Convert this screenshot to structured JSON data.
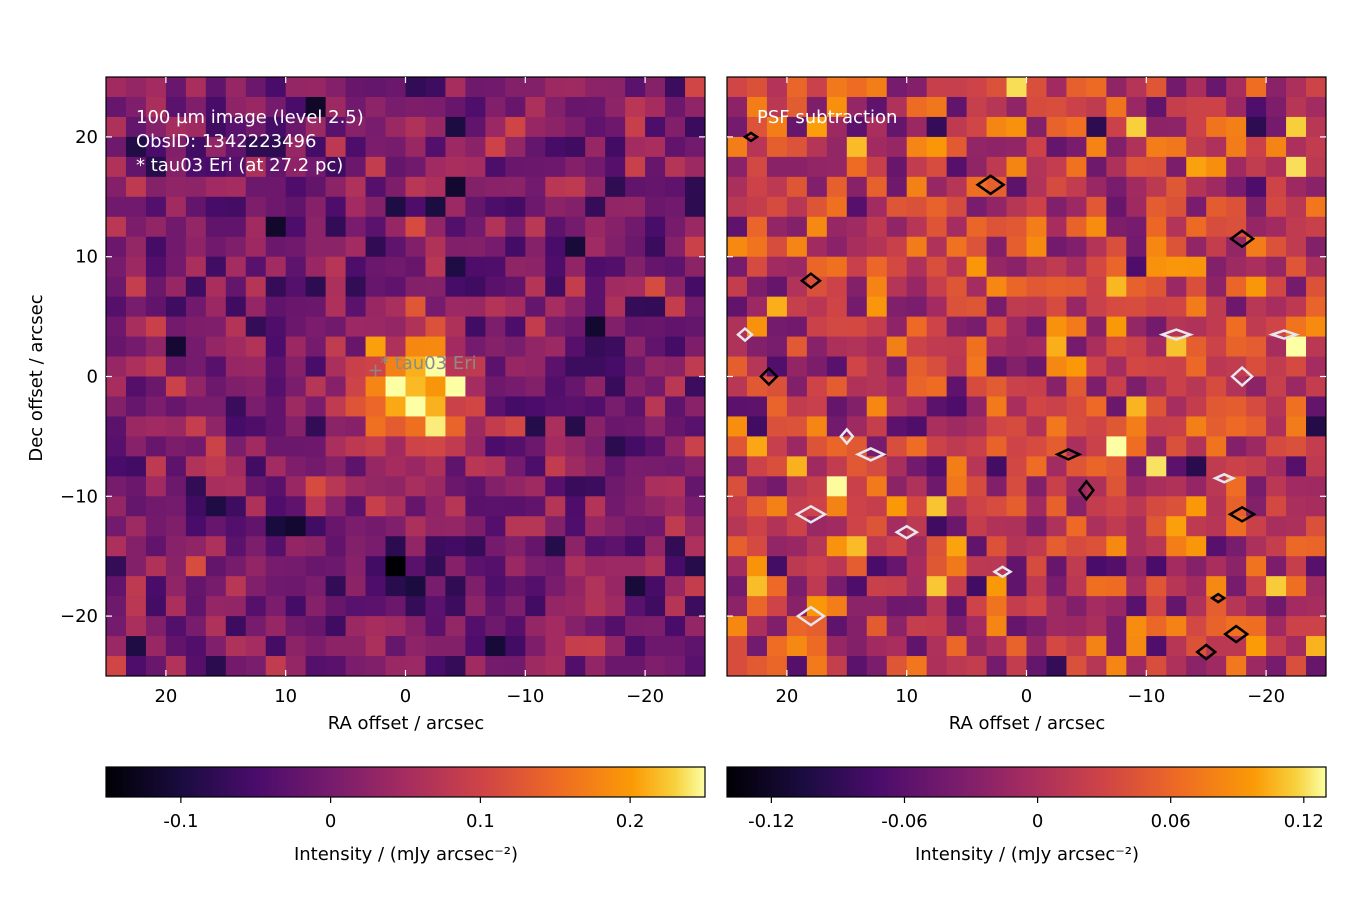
{
  "figure": {
    "ylabel": "Dec offset / arcsec",
    "axis_ticks": [
      20,
      10,
      0,
      -10,
      -20
    ],
    "axis_tick_labels": [
      "20",
      "10",
      "0",
      "−10",
      "−20"
    ]
  },
  "left_panel": {
    "annotation_lines": [
      "100 µm image (level 2.5)",
      "ObsID: 1342223496",
      "* tau03 Eri (at 27.2 pc)"
    ],
    "star_label": "* tau03 Eri",
    "xlabel": "RA offset / arcsec",
    "colorbar": {
      "label": "Intensity / (mJy arcsec⁻²)",
      "tick_labels": [
        "-0.1",
        "0",
        "0.1",
        "0.2"
      ]
    }
  },
  "right_panel": {
    "title": "PSF subtraction",
    "xlabel": "RA offset / arcsec",
    "colorbar": {
      "label": "Intensity / (mJy arcsec⁻²)",
      "tick_labels": [
        "-0.12",
        "-0.06",
        "0",
        "0.06",
        "0.12"
      ]
    }
  },
  "chart_data": [
    {
      "type": "heatmap",
      "title": "100 µm image (level 2.5)",
      "xlabel": "RA offset / arcsec",
      "ylabel": "Dec offset / arcsec",
      "xlim": [
        25,
        -25
      ],
      "ylim": [
        -25,
        25
      ],
      "colormap": "inferno",
      "color_range": [
        -0.15,
        0.25
      ],
      "colorbar_ticks": [
        -0.1,
        0,
        0.1,
        0.2
      ],
      "colorbar_label": "Intensity / (mJy arcsec⁻²)",
      "star": {
        "name": "* tau03 Eri",
        "ra_offset": 2.5,
        "dec_offset": 0.5
      },
      "features": [
        {
          "kind": "peak",
          "ra_offset": -1.0,
          "dec_offset": -1.0,
          "value": 0.24
        },
        {
          "kind": "trough",
          "ra_offset": 0.0,
          "dec_offset": -16.0,
          "value": -0.14
        },
        {
          "kind": "trough",
          "ra_offset": 10.0,
          "dec_offset": -12.5,
          "value": -0.14
        },
        {
          "kind": "trough",
          "ra_offset": 18.0,
          "dec_offset": -11.0,
          "value": -0.14
        }
      ]
    },
    {
      "type": "heatmap",
      "title": "PSF subtraction",
      "xlabel": "RA offset / arcsec",
      "xlim": [
        25,
        -25
      ],
      "ylim": [
        -25,
        25
      ],
      "colormap": "inferno",
      "color_range": [
        -0.14,
        0.13
      ],
      "colorbar_ticks": [
        -0.12,
        -0.06,
        0,
        0.06,
        0.12
      ],
      "colorbar_label": "Intensity / (mJy arcsec⁻²)",
      "contours": [
        {
          "color": "black",
          "ra_offset": 23.0,
          "dec_offset": 20.0
        },
        {
          "color": "black",
          "ra_offset": 3.0,
          "dec_offset": 16.0
        },
        {
          "color": "black",
          "ra_offset": -18.0,
          "dec_offset": 11.5
        },
        {
          "color": "black",
          "ra_offset": 18.0,
          "dec_offset": 8.0
        },
        {
          "color": "white",
          "ra_offset": 23.5,
          "dec_offset": 3.5
        },
        {
          "color": "white",
          "ra_offset": -12.5,
          "dec_offset": 3.5
        },
        {
          "color": "white",
          "ra_offset": -21.5,
          "dec_offset": 3.5
        },
        {
          "color": "white",
          "ra_offset": -18.0,
          "dec_offset": 0.0
        },
        {
          "color": "black",
          "ra_offset": 21.5,
          "dec_offset": 0.0
        },
        {
          "color": "white",
          "ra_offset": 15.0,
          "dec_offset": -5.0
        },
        {
          "color": "white",
          "ra_offset": 13.0,
          "dec_offset": -6.5
        },
        {
          "color": "black",
          "ra_offset": -3.5,
          "dec_offset": -6.5
        },
        {
          "color": "white",
          "ra_offset": -16.5,
          "dec_offset": -8.5
        },
        {
          "color": "black",
          "ra_offset": -5.0,
          "dec_offset": -9.5
        },
        {
          "color": "white",
          "ra_offset": 18.0,
          "dec_offset": -11.5
        },
        {
          "color": "black",
          "ra_offset": -18.0,
          "dec_offset": -11.5
        },
        {
          "color": "white",
          "ra_offset": 10.0,
          "dec_offset": -13.0
        },
        {
          "color": "white",
          "ra_offset": 2.0,
          "dec_offset": -16.3
        },
        {
          "color": "black",
          "ra_offset": -16.0,
          "dec_offset": -18.5
        },
        {
          "color": "white",
          "ra_offset": 18.0,
          "dec_offset": -20.0
        },
        {
          "color": "black",
          "ra_offset": -17.5,
          "dec_offset": -21.5
        },
        {
          "color": "black",
          "ra_offset": -15.0,
          "dec_offset": -23.0
        }
      ]
    }
  ]
}
